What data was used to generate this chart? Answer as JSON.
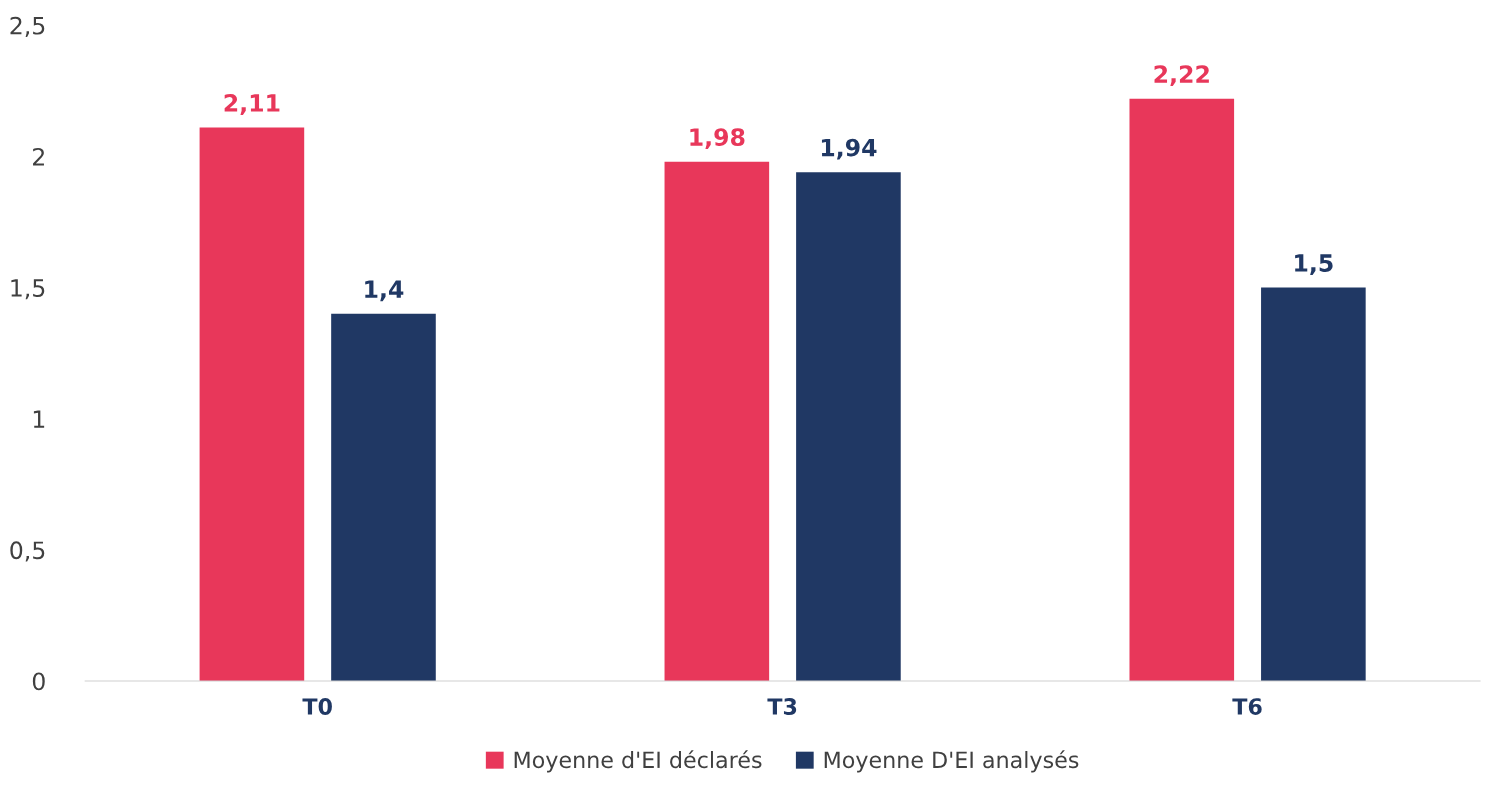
{
  "chart_data": {
    "type": "bar",
    "categories": [
      "T0",
      "T3",
      "T6"
    ],
    "series": [
      {
        "name": "Moyenne d'EI déclarés",
        "color": "#e8375a",
        "values": [
          2.11,
          1.98,
          2.22
        ],
        "value_labels": [
          "2,11",
          "1,98",
          "2,22"
        ]
      },
      {
        "name": "Moyenne D'EI analysés",
        "color": "#203864",
        "values": [
          1.4,
          1.94,
          1.5
        ],
        "value_labels": [
          "1,4",
          "1,94",
          "1,5"
        ]
      }
    ],
    "ylim": [
      0,
      2.5
    ],
    "yticks": [
      0,
      {
        "value": 0.5,
        "label": "0,5"
      },
      1,
      {
        "value": 1.5,
        "label": "1,5"
      },
      2,
      {
        "value": 2.5,
        "label": "2,5"
      }
    ],
    "grid": false,
    "legend": "bottom"
  }
}
